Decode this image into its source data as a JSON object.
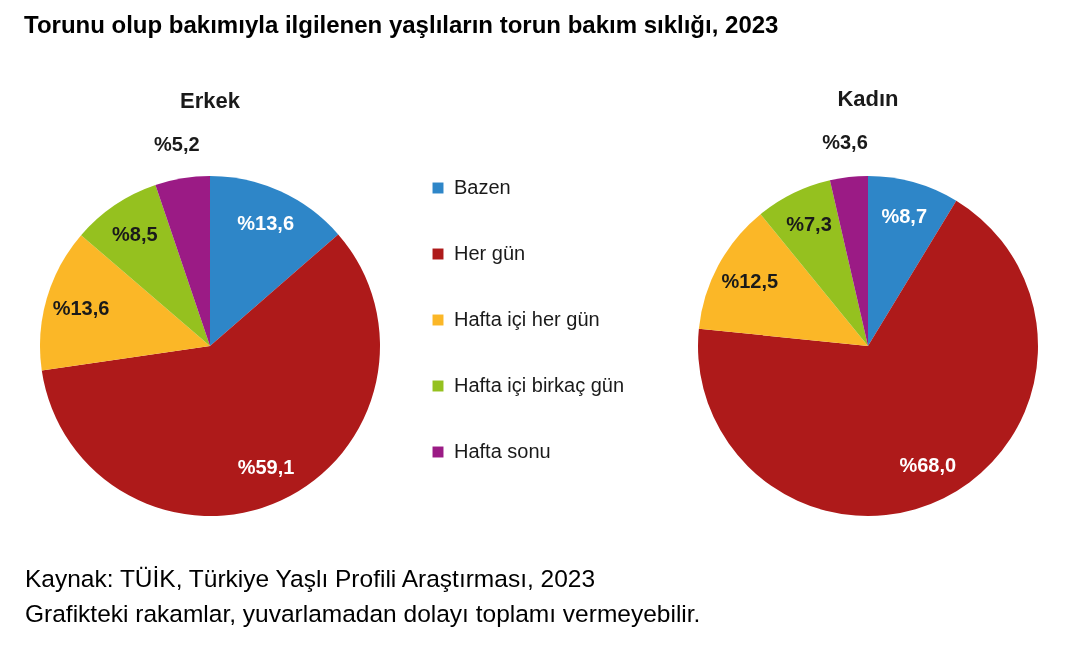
{
  "chart_data": {
    "type": "pie",
    "title": "Torunu olup bakımıyla ilgilenen yaşlıların torun bakım sıklığı, 2023",
    "categories": [
      "Bazen",
      "Her gün",
      "Hafta içi her gün",
      "Hafta içi birkaç gün",
      "Hafta sonu"
    ],
    "colors": [
      "#2e86c8",
      "#ae1a1a",
      "#fbb727",
      "#95c11f",
      "#9b1b85"
    ],
    "series": [
      {
        "name": "Erkek",
        "values": [
          13.6,
          59.1,
          13.6,
          8.5,
          5.2
        ],
        "value_labels": [
          "%13,6",
          "%59,1",
          "%13,6",
          "%8,5",
          "%5,2"
        ]
      },
      {
        "name": "Kadın",
        "values": [
          8.7,
          68.0,
          12.5,
          7.3,
          3.6
        ],
        "value_labels": [
          "%8,7",
          "%68,0",
          "%12,5",
          "%7,3",
          "%3,6"
        ]
      }
    ],
    "legend": "right",
    "annotations": [
      "Kaynak: TÜİK, Türkiye Yaşlı Profili Araştırması, 2023",
      "Grafikteki rakamlar, yuvarlamadan dolayı toplamı vermeyebilir."
    ]
  }
}
